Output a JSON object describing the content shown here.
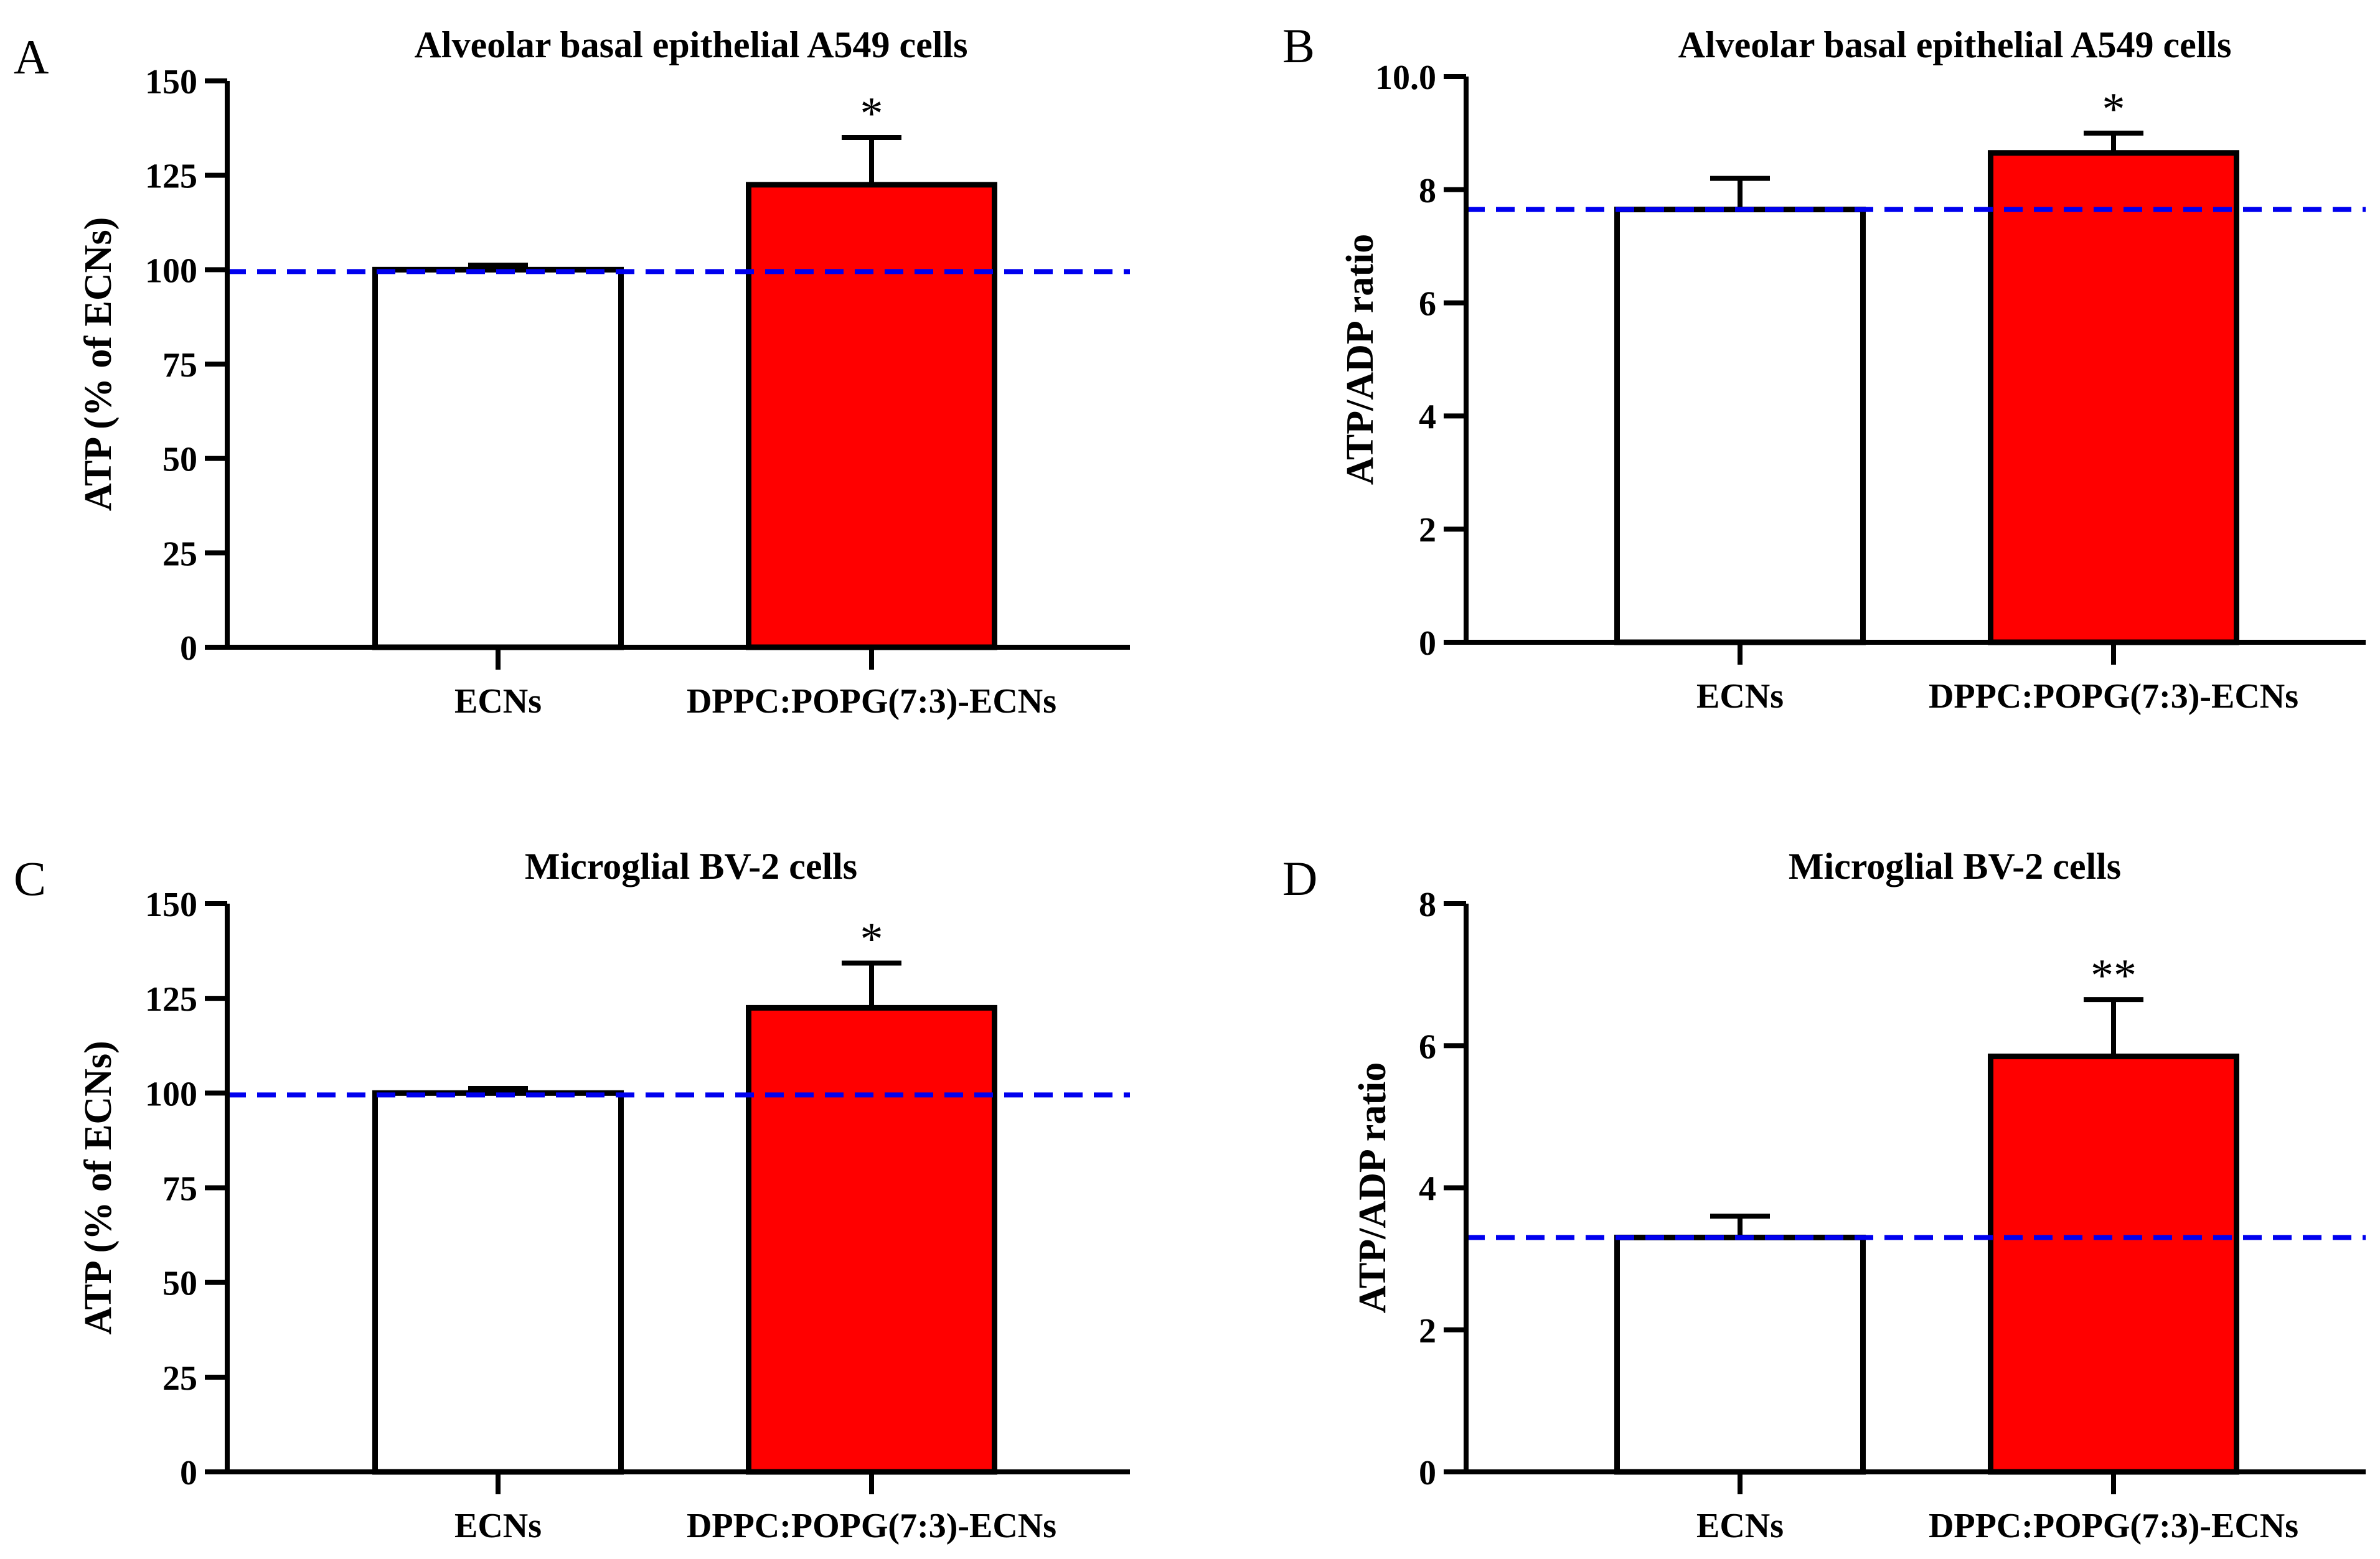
{
  "colors": {
    "bar_control": "#ffffff",
    "bar_treatment": "#ff0000",
    "reference_line": "#0000ee",
    "axis": "#000000"
  },
  "chart_data": [
    {
      "panel": "A",
      "type": "bar",
      "title": "Alveolar basal epithelial A549 cells",
      "ylabel": "ATP (% of ECNs)",
      "xlabel": "",
      "ylim": [
        0,
        150
      ],
      "yticks": [
        0,
        25,
        50,
        75,
        100,
        125,
        150
      ],
      "ytick_labels": [
        "0",
        "25",
        "50",
        "75",
        "100",
        "125",
        "150"
      ],
      "categories": [
        "ECNs",
        "DPPC:POPG(7:3)-ECNs"
      ],
      "values": [
        100,
        122.5
      ],
      "errors": [
        1.2,
        12.5
      ],
      "significance": [
        "",
        "*"
      ],
      "reference_line": 99.5
    },
    {
      "panel": "B",
      "type": "bar",
      "title": "Alveolar basal epithelial A549 cells",
      "ylabel": "ATP/ADP ratio",
      "xlabel": "",
      "ylim": [
        0,
        10
      ],
      "yticks": [
        0,
        2,
        4,
        6,
        8,
        10
      ],
      "ytick_labels": [
        "0",
        "2",
        "4",
        "6",
        "8",
        "10.0"
      ],
      "categories": [
        "ECNs",
        "DPPC:POPG(7:3)-ECNs"
      ],
      "values": [
        7.65,
        8.65
      ],
      "errors": [
        0.55,
        0.35
      ],
      "significance": [
        "",
        "*"
      ],
      "reference_line": 7.65
    },
    {
      "panel": "C",
      "type": "bar",
      "title": "Microglial BV-2 cells",
      "ylabel": "ATP (% of ECNs)",
      "xlabel": "",
      "ylim": [
        0,
        150
      ],
      "yticks": [
        0,
        25,
        50,
        75,
        100,
        125,
        150
      ],
      "ytick_labels": [
        "0",
        "25",
        "50",
        "75",
        "100",
        "125",
        "150"
      ],
      "categories": [
        "ECNs",
        "DPPC:POPG(7:3)-ECNs"
      ],
      "values": [
        100,
        122.5
      ],
      "errors": [
        1.2,
        11.8
      ],
      "significance": [
        "",
        "*"
      ],
      "reference_line": 99.5
    },
    {
      "panel": "D",
      "type": "bar",
      "title": "Microglial BV-2 cells",
      "ylabel": "ATP/ADP ratio",
      "xlabel": "",
      "ylim": [
        0,
        8
      ],
      "yticks": [
        0,
        2,
        4,
        6,
        8
      ],
      "ytick_labels": [
        "0",
        "2",
        "4",
        "6",
        "8"
      ],
      "categories": [
        "ECNs",
        "DPPC:POPG(7:3)-ECNs"
      ],
      "values": [
        3.3,
        5.85
      ],
      "errors": [
        0.3,
        0.8
      ],
      "significance": [
        "",
        "**"
      ],
      "reference_line": 3.3
    }
  ]
}
